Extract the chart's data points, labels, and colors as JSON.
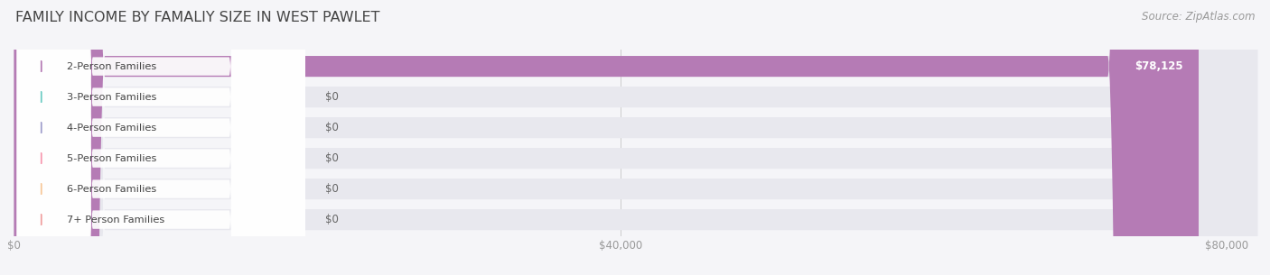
{
  "title": "FAMILY INCOME BY FAMALIY SIZE IN WEST PAWLET",
  "source": "Source: ZipAtlas.com",
  "categories": [
    "2-Person Families",
    "3-Person Families",
    "4-Person Families",
    "5-Person Families",
    "6-Person Families",
    "7+ Person Families"
  ],
  "values": [
    78125,
    0,
    0,
    0,
    0,
    0
  ],
  "bar_colors": [
    "#b57bb5",
    "#6eccc4",
    "#a09fcc",
    "#f799b0",
    "#f8c89a",
    "#f0a0a0"
  ],
  "label_colors": [
    "#b57bb5",
    "#6eccc4",
    "#a09fcc",
    "#f799b0",
    "#f8c89a",
    "#f0a0a0"
  ],
  "bg_color": "#f5f5f8",
  "bar_bg_color": "#e8e8ee",
  "xlim_max": 82000,
  "xticks": [
    0,
    40000,
    80000
  ],
  "xtick_labels": [
    "$0",
    "$40,000",
    "$80,000"
  ],
  "value_labels": [
    "$78,125",
    "$0",
    "$0",
    "$0",
    "$0",
    "$0"
  ],
  "title_fontsize": 11.5,
  "source_fontsize": 8.5,
  "figure_width": 14.06,
  "figure_height": 3.05
}
